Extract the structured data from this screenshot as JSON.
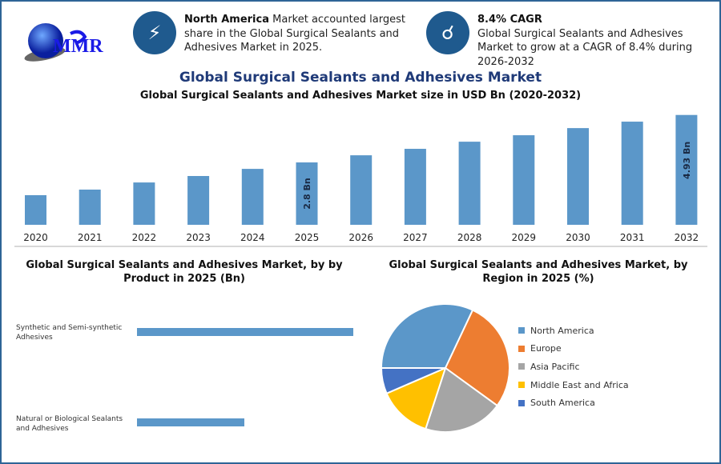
{
  "logo": {
    "text": "MMR"
  },
  "info1": {
    "icon": "lightning-icon",
    "bold": "North America",
    "text": " Market accounted largest share in the Global Surgical Sealants and Adhesives Market in 2025."
  },
  "info2": {
    "icon": "drop-hand-icon",
    "bold": "8.4% CAGR",
    "text": "Global Surgical Sealants and Adhesives Market to grow at a CAGR of 8.4% during 2026-2032"
  },
  "header": {
    "title": "Global Surgical Sealants and Adhesives Market",
    "subtitle": "Global Surgical Sealants and Adhesives Market size in USD Bn (2020-2032)"
  },
  "colors": {
    "bar": "#5b97c9",
    "accent": "#1f5a8e",
    "title": "#1f3a78"
  },
  "chart_data": [
    {
      "type": "bar",
      "title": "Global Surgical Sealants and Adhesives Market size in USD Bn (2020-2032)",
      "categories": [
        "2020",
        "2021",
        "2022",
        "2023",
        "2024",
        "2025",
        "2026",
        "2027",
        "2028",
        "2029",
        "2030",
        "2031",
        "2032"
      ],
      "values": [
        1.33,
        1.58,
        1.9,
        2.19,
        2.51,
        2.8,
        3.12,
        3.41,
        3.73,
        4.02,
        4.34,
        4.63,
        4.93
      ],
      "data_labels": {
        "2025": "2.8 Bn",
        "2032": "4.93 Bn"
      },
      "ylim": [
        0,
        5
      ],
      "grid": false
    },
    {
      "type": "bar",
      "orientation": "horizontal",
      "title": "Global Surgical Sealants and Adhesives Market, by by Product in 2025 (Bn)",
      "categories": [
        "Synthetic and Semi-synthetic Adhesives",
        "Natural or Biological Sealants and Adhesives"
      ],
      "values": [
        1.87,
        0.93
      ]
    },
    {
      "type": "pie",
      "title": "Global Surgical Sealants and Adhesives Market, by Region in 2025 (%)",
      "legend": "right",
      "slices": [
        {
          "name": "North America",
          "value": 32,
          "color": "#5b97c9"
        },
        {
          "name": "Europe",
          "value": 28,
          "color": "#ed7d31"
        },
        {
          "name": "Asia Pacific",
          "value": 20,
          "color": "#a5a5a5"
        },
        {
          "name": "Middle East and Africa",
          "value": 13.5,
          "color": "#ffc000"
        },
        {
          "name": "South America",
          "value": 6.5,
          "color": "#4472c4"
        }
      ]
    }
  ]
}
